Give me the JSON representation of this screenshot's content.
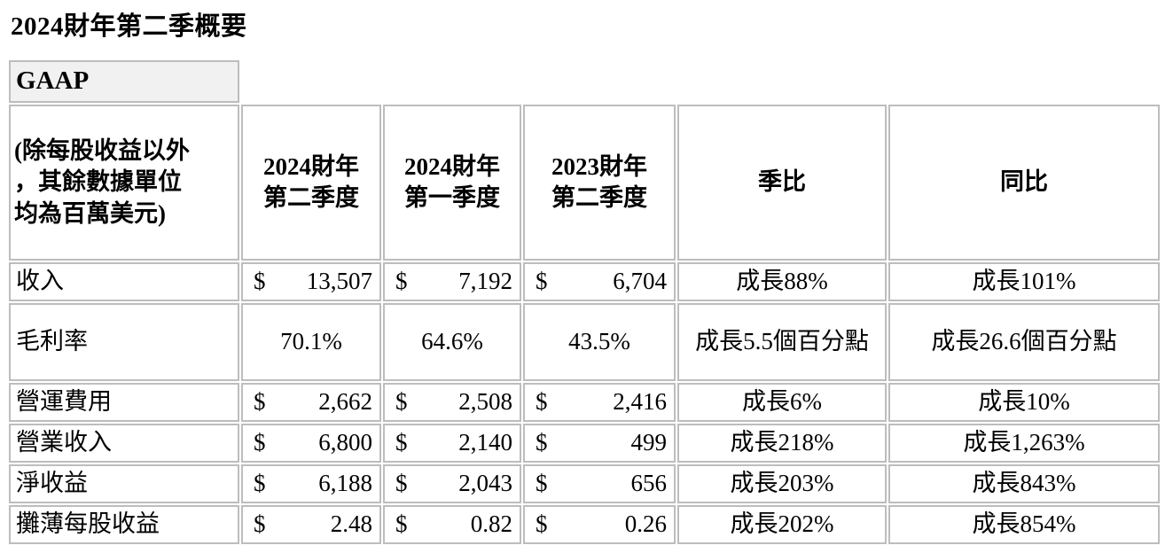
{
  "page_title": "2024財年第二季概要",
  "table": {
    "section_label": "GAAP",
    "currency_symbol": "$",
    "header": {
      "note": "(除每股收益以外\n，其餘數據單位\n均為百萬美元)",
      "q2_fy24": "2024財年\n第二季度",
      "q1_fy24": "2024財年\n第一季度",
      "q2_fy23": "2023財年\n第二季度",
      "qoq": "季比",
      "yoy": "同比"
    },
    "rows": [
      {
        "label": "收入",
        "type": "currency_millions",
        "q2_fy24": "13,507",
        "q1_fy24": "7,192",
        "q2_fy23": "6,704",
        "qoq": "成長88%",
        "yoy": "成長101%"
      },
      {
        "label": "毛利率",
        "type": "percent",
        "q2_fy24": "70.1%",
        "q1_fy24": "64.6%",
        "q2_fy23": "43.5%",
        "qoq": "成長5.5個百分點",
        "yoy": "成長26.6個百分點"
      },
      {
        "label": "營運費用",
        "type": "currency_millions",
        "q2_fy24": "2,662",
        "q1_fy24": "2,508",
        "q2_fy23": "2,416",
        "qoq": "成長6%",
        "yoy": "成長10%"
      },
      {
        "label": "營業收入",
        "type": "currency_millions",
        "q2_fy24": "6,800",
        "q1_fy24": "2,140",
        "q2_fy23": "499",
        "qoq": "成長218%",
        "yoy": "成長1,263%"
      },
      {
        "label": "淨收益",
        "type": "currency_millions",
        "q2_fy24": "6,188",
        "q1_fy24": "2,043",
        "q2_fy23": "656",
        "qoq": "成長203%",
        "yoy": "成長843%"
      },
      {
        "label": "攤薄每股收益",
        "type": "currency_per_share",
        "q2_fy24": "2.48",
        "q1_fy24": "0.82",
        "q2_fy23": "0.26",
        "qoq": "成長202%",
        "yoy": "成長854%"
      }
    ]
  },
  "colors": {
    "border": "#bdbdbd",
    "section_background": "#f1f1f1",
    "text": "#000000",
    "background": "#ffffff"
  }
}
